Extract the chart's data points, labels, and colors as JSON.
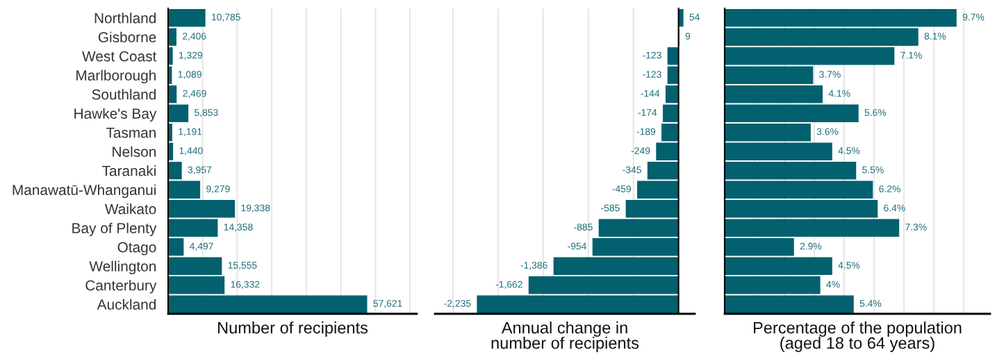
{
  "chart_data": [
    {
      "type": "bar",
      "orientation": "horizontal",
      "xlabel": "Number of recipients",
      "categories": [
        "Northland",
        "Gisborne",
        "West Coast",
        "Marlborough",
        "Southland",
        "Hawke's Bay",
        "Tasman",
        "Nelson",
        "Taranaki",
        "Manawatū-Whanganui",
        "Waikato",
        "Bay of Plenty",
        "Otago",
        "Wellington",
        "Canterbury",
        "Auckland"
      ],
      "values": [
        10785,
        2406,
        1329,
        1089,
        2469,
        5853,
        1191,
        1440,
        3957,
        9279,
        19338,
        14358,
        4497,
        15555,
        16332,
        57621
      ],
      "value_labels": [
        "10,785",
        "2,406",
        "1,329",
        "1,089",
        "2,469",
        "5,853",
        "1,191",
        "1,440",
        "3,957",
        "9,279",
        "19,338",
        "14,358",
        "4,497",
        "15,555",
        "16,332",
        "57,621"
      ],
      "color": "#03606f",
      "xlim": [
        0,
        72000
      ],
      "xticks": [
        {
          "value": 10000,
          "label": null
        },
        {
          "value": 20000,
          "label": null
        },
        {
          "value": 30000,
          "label": null
        },
        {
          "value": 40000,
          "label": null
        },
        {
          "value": 50000,
          "label": null
        },
        {
          "value": 60000,
          "label": null
        },
        {
          "value": 70000,
          "label": null
        }
      ],
      "grid": "x",
      "tick_labels": "y"
    },
    {
      "type": "bar",
      "orientation": "horizontal",
      "xlabel": "Annual change in\nnumber of recipients",
      "values": [
        54,
        9,
        -123,
        -123,
        -144,
        -174,
        -189,
        -249,
        -345,
        -459,
        -585,
        -885,
        -954,
        -1386,
        -1662,
        -2235
      ],
      "value_labels": [
        "54",
        "9",
        "-123",
        "-123",
        "-144",
        "-174",
        "-189",
        "-249",
        "-345",
        "-459",
        "-585",
        "-885",
        "-954",
        "-1,386",
        "-1,662",
        "-2,235"
      ],
      "color": "#03606f",
      "xlim": [
        -2700,
        180
      ],
      "xticks": [
        {
          "value": -2500,
          "label": null
        },
        {
          "value": -2000,
          "label": null
        },
        {
          "value": -1500,
          "label": null
        },
        {
          "value": -1000,
          "label": null
        },
        {
          "value": -500,
          "label": null
        }
      ],
      "grid": "x",
      "tick_labels": false
    },
    {
      "type": "bar",
      "orientation": "horizontal",
      "xlabel": "Percentage of the population\n(aged 18 to 64 years)",
      "values": [
        9.7,
        8.1,
        7.1,
        3.7,
        4.1,
        5.6,
        3.6,
        4.5,
        5.5,
        6.2,
        6.4,
        7.3,
        2.9,
        4.5,
        4,
        5.4
      ],
      "value_labels": [
        "9.7%",
        "8.1%",
        "7.1%",
        "3.7%",
        "4.1%",
        "5.6%",
        "3.6%",
        "4.5%",
        "5.5%",
        "6.2%",
        "6.4%",
        "7.3%",
        "2.9%",
        "4.5%",
        "4%",
        "5.4%"
      ],
      "color": "#03606f",
      "xlim": [
        0,
        11.1
      ],
      "xticks": [
        {
          "value": 1.25,
          "label": null
        },
        {
          "value": 2.5,
          "label": null
        },
        {
          "value": 3.75,
          "label": null
        },
        {
          "value": 5,
          "label": null
        },
        {
          "value": 6.25,
          "label": null
        },
        {
          "value": 7.5,
          "label": null
        },
        {
          "value": 8.75,
          "label": null
        },
        {
          "value": 10,
          "label": null
        }
      ],
      "grid": "x",
      "tick_labels": false
    }
  ]
}
